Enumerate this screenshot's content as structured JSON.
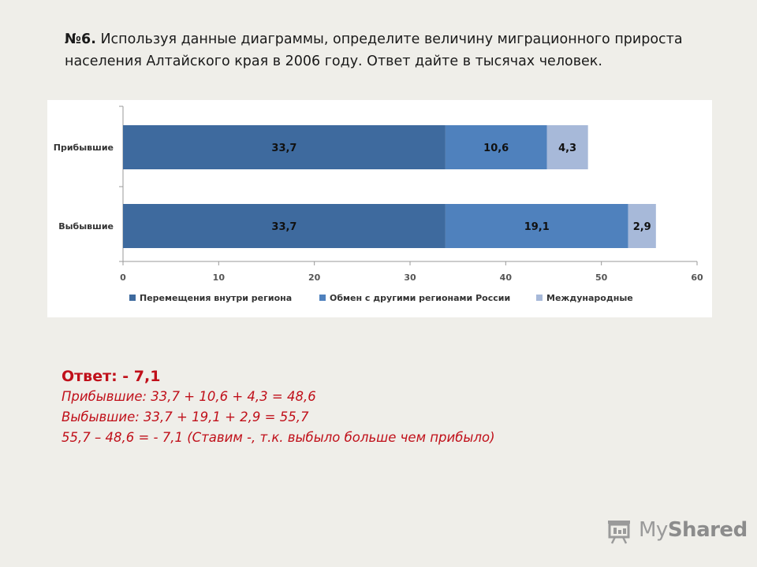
{
  "question": {
    "number": "№6.",
    "text_line1": " Используя данные диаграммы, определите величину миграционного прироста",
    "text_line2": "населения Алтайского края в 2006 году. Ответ дайте в тысячах человек."
  },
  "chart_data": {
    "type": "bar",
    "orientation": "horizontal",
    "stacked": true,
    "categories": [
      "Прибывшие",
      "Выбывшие"
    ],
    "series": [
      {
        "name": "Перемещения внутри региона",
        "values": [
          33.7,
          33.7
        ],
        "labels": [
          "33,7",
          "33,7"
        ],
        "color": "#3e6a9e"
      },
      {
        "name": "Обмен с другими регионами России",
        "values": [
          10.6,
          19.1
        ],
        "labels": [
          "10,6",
          "19,1"
        ],
        "color": "#4f81bd"
      },
      {
        "name": "Международные",
        "values": [
          4.3,
          2.9
        ],
        "labels": [
          "4,3",
          "2,9"
        ],
        "color": "#a7b9d9"
      }
    ],
    "xlim": [
      0,
      60
    ],
    "xticks": [
      0,
      10,
      20,
      30,
      40,
      50,
      60
    ],
    "legend_position": "bottom",
    "grid": false
  },
  "answer": {
    "title": "Ответ: - 7,1",
    "line1": "Прибывшие: 33,7 + 10,6 + 4,3 = 48,6",
    "line2": "Выбывшие: 33,7 + 19,1 + 2,9 = 55,7",
    "line3": "55,7 – 48,6 =  - 7,1 (Ставим -, т.к. выбыло больше чем прибыло)"
  },
  "watermark": {
    "text_light": "My",
    "text_bold": "Shared"
  },
  "icons": {
    "watermark_logo": "projector-screen-icon"
  }
}
